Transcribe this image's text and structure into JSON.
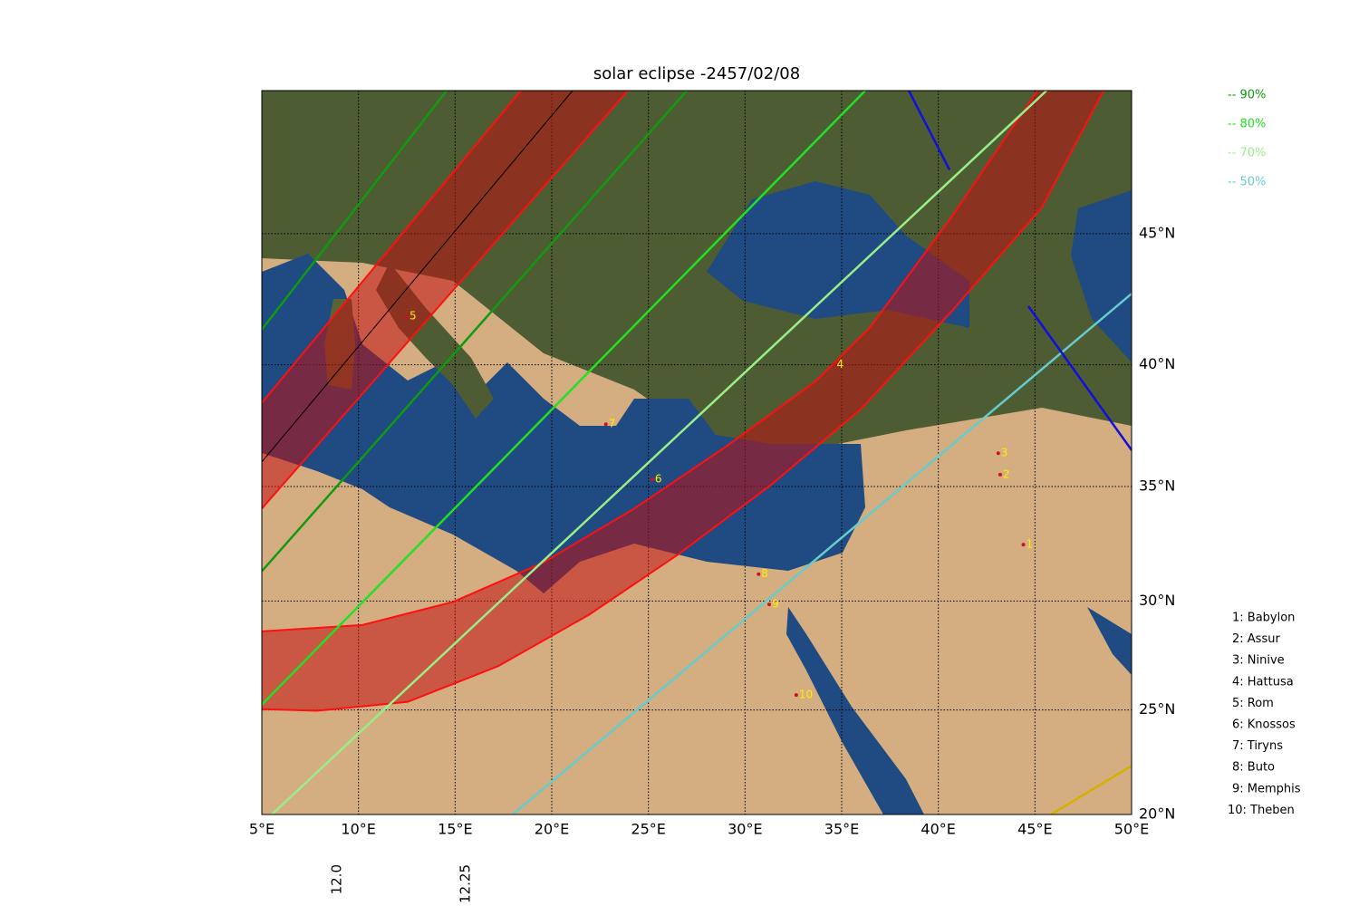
{
  "map": {
    "title": "solar eclipse -2457/02/08",
    "projection": "mercator",
    "xlim": [
      5,
      50
    ],
    "ylim": [
      20,
      50
    ],
    "xticks": [
      {
        "value": 5,
        "label": "5°E"
      },
      {
        "value": 10,
        "label": "10°E"
      },
      {
        "value": 15,
        "label": "15°E"
      },
      {
        "value": 20,
        "label": "20°E"
      },
      {
        "value": 25,
        "label": "25°E"
      },
      {
        "value": 30,
        "label": "30°E"
      },
      {
        "value": 35,
        "label": "35°E"
      },
      {
        "value": 40,
        "label": "40°E"
      },
      {
        "value": 45,
        "label": "45°E"
      },
      {
        "value": 50,
        "label": "50°E"
      }
    ],
    "yticks": [
      {
        "value": 20,
        "label": "20°N"
      },
      {
        "value": 25,
        "label": "25°N"
      },
      {
        "value": 30,
        "label": "30°N"
      },
      {
        "value": 35,
        "label": "35°N"
      },
      {
        "value": 40,
        "label": "40°N"
      },
      {
        "value": 45,
        "label": "45°N"
      }
    ],
    "grid": true,
    "time_ticks": [
      {
        "lon": 8.9,
        "label": "12.0"
      },
      {
        "lon": 15.55,
        "label": "12.25"
      }
    ],
    "legend": [
      {
        "name": "-- 90%",
        "color": "#0f9a0f"
      },
      {
        "name": "-- 80%",
        "color": "#22e022"
      },
      {
        "name": "-- 70%",
        "color": "#99ee88"
      },
      {
        "name": "-- 50%",
        "color": "#66cccc"
      }
    ],
    "bands": [
      {
        "color": "#c01010",
        "upper": {
          "lon": [
            5,
            18.41
          ],
          "lat": [
            38.47,
            50
          ]
        },
        "lower": {
          "lon": [
            5,
            23.94
          ],
          "lat": [
            34.06,
            50
          ]
        }
      },
      {
        "color": "#c01010",
        "upper": {
          "lon": [
            5,
            10.2,
            14.89,
            19.58,
            24.27,
            28.95,
            33.64,
            36.45,
            40.67,
            45.13
          ],
          "lat": [
            28.63,
            28.92,
            29.96,
            31.72,
            34.06,
            36.64,
            39.33,
            41.45,
            45.59,
            50
          ]
        },
        "lower": {
          "lon": [
            5,
            7.86,
            12.55,
            17.23,
            21.92,
            26.61,
            31.3,
            35.98,
            40.67,
            45.36,
            48.55
          ],
          "lat": [
            25.04,
            24.96,
            25.38,
            27.04,
            29.38,
            32.11,
            35.04,
            38.21,
            42.07,
            45.96,
            50
          ]
        }
      }
    ],
    "lines": [
      {
        "color": "#000000",
        "lon": [
          5,
          21.08
        ],
        "lat": [
          36.04,
          50
        ]
      },
      {
        "color": "#0f9a0f",
        "lon": [
          5,
          14.56
        ],
        "lat": [
          41.38,
          50
        ]
      },
      {
        "color": "#0f9a0f",
        "lon": [
          5,
          26.99
        ],
        "lat": [
          31.33,
          50
        ]
      },
      {
        "color": "#22e022",
        "lon": [
          5,
          36.22
        ],
        "lat": [
          25.25,
          50
        ]
      },
      {
        "color": "#99ee88",
        "lon": [
          5.52,
          45.6
        ],
        "lat": [
          20,
          50
        ]
      },
      {
        "color": "#66cccc",
        "lon": [
          17.98,
          50
        ],
        "lat": [
          20,
          42.76
        ]
      },
      {
        "color": "#d4b000",
        "lon": [
          45.83,
          50
        ],
        "lat": [
          20,
          22.35
        ]
      },
      {
        "color": "#1010dd",
        "lon": [
          38.47,
          40.58
        ],
        "lat": [
          50,
          47.29
        ]
      },
      {
        "color": "#1010dd",
        "lon": [
          44.66,
          50
        ],
        "lat": [
          42.28,
          36.53
        ]
      }
    ],
    "sites": [
      {
        "label": "1",
        "name": "1: Babylon",
        "lon": 44.4,
        "lat": 32.5
      },
      {
        "label": "2",
        "name": "2: Assur",
        "lon": 43.2,
        "lat": 35.5
      },
      {
        "label": "3",
        "name": "3: Ninive",
        "lon": 43.1,
        "lat": 36.4
      },
      {
        "label": "4",
        "name": "4: Hattusa",
        "lon": 34.6,
        "lat": 40.0
      },
      {
        "label": "5",
        "name": "5: Rom",
        "lon": 12.5,
        "lat": 41.9
      },
      {
        "label": "6",
        "name": "6: Knossos",
        "lon": 25.2,
        "lat": 35.3
      },
      {
        "label": "7",
        "name": "7: Tiryns",
        "lon": 22.8,
        "lat": 37.6
      },
      {
        "label": "8",
        "name": "8: Buto",
        "lon": 30.7,
        "lat": 31.2
      },
      {
        "label": "9",
        "name": "9: Memphis",
        "lon": 31.25,
        "lat": 29.85
      },
      {
        "label": "10",
        "name": "10: Theben",
        "lon": 32.65,
        "lat": 25.7
      }
    ]
  }
}
